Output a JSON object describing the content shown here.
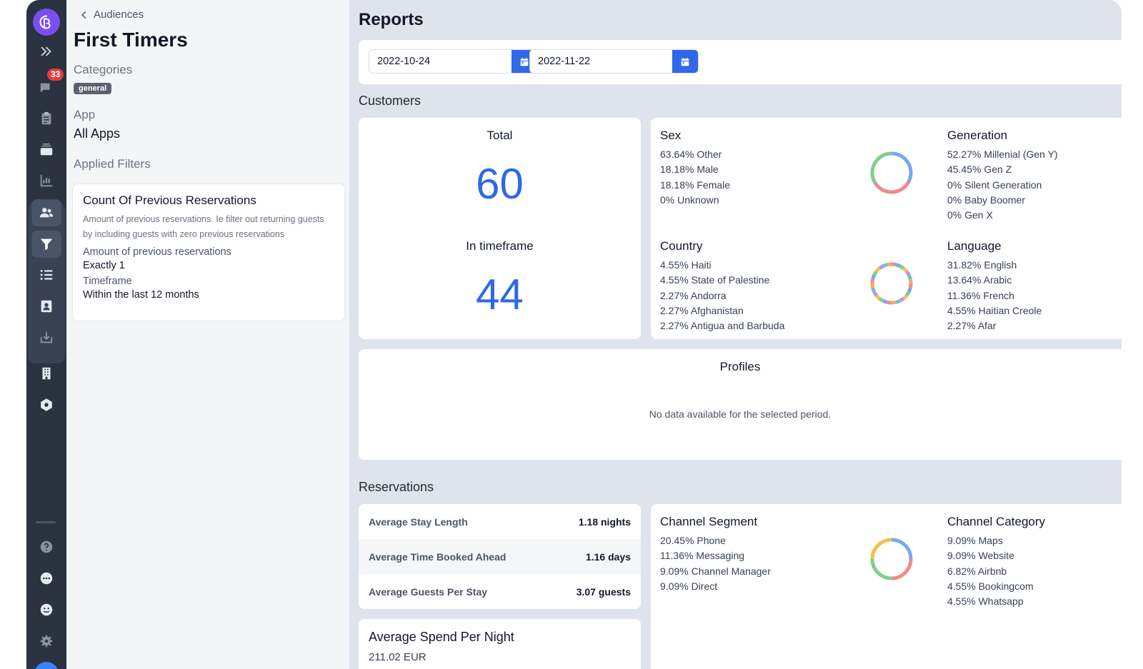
{
  "nav": {
    "conversations_badge": "33"
  },
  "audience": {
    "back_label": "Audiences",
    "title": "First Timers",
    "categories_label": "Categories",
    "category_tag": "general",
    "app_label": "App",
    "app_value": "All Apps",
    "filters_label": "Applied Filters",
    "filter": {
      "title": "Count Of Previous Reservations",
      "description": "Amount of previous reservations. Ie filter out returning guests by including guests with zero previous reservations",
      "row1_label": "Amount of previous reservations",
      "row1_value": "Exactly 1",
      "row2_label": "Timeframe",
      "row2_value": "Within the last 12 months"
    }
  },
  "reports": {
    "title": "Reports",
    "start_date": "2022-10-24",
    "end_date": "2022-11-22",
    "customers_label": "Customers",
    "total_label": "Total",
    "total_value": "60",
    "timeframe_label": "In timeframe",
    "timeframe_value": "44",
    "sex": {
      "title": "Sex",
      "items": [
        "63.64% Other",
        "18.18% Male",
        "18.18% Female",
        "0% Unknown"
      ]
    },
    "generation": {
      "title": "Generation",
      "items": [
        "52.27% Millenial (Gen Y)",
        "45.45% Gen Z",
        "0% Silent Generation",
        "0% Baby Boomer",
        "0% Gen X"
      ]
    },
    "country": {
      "title": "Country",
      "items": [
        "4.55% Haiti",
        "4.55% State of Palestine",
        "2.27% Andorra",
        "2.27% Afghanistan",
        "2.27% Antigua and Barbuda"
      ]
    },
    "language": {
      "title": "Language",
      "items": [
        "31.82% English",
        "13.64% Arabic",
        "11.36% French",
        "4.55% Haitian Creole",
        "2.27% Afar"
      ]
    },
    "profiles_title": "Profiles",
    "profiles_empty": "No data available for the selected period.",
    "reservations_label": "Reservations",
    "stats": [
      {
        "label": "Average Stay Length",
        "value": "1.18 nights"
      },
      {
        "label": "Average Time Booked Ahead",
        "value": "1.16 days"
      },
      {
        "label": "Average Guests Per Stay",
        "value": "3.07 guests"
      }
    ],
    "channel_segment": {
      "title": "Channel Segment",
      "items": [
        "20.45% Phone",
        "11.36% Messaging",
        "9.09% Channel Manager",
        "9.09% Direct"
      ]
    },
    "channel_category": {
      "title": "Channel Category",
      "items": [
        "9.09% Maps",
        "9.09% Website",
        "6.82% Airbnb",
        "4.55% Bookingcom",
        "4.55% Whatsapp"
      ]
    },
    "spend_title": "Average Spend Per Night",
    "spend_value": "211.02 EUR"
  },
  "colors": {
    "accent": "#2f68e8",
    "nav_bg": "#2b3240",
    "logo": "#7a4ff2",
    "badge": "#e53e3e"
  },
  "donut_colors": {
    "sex": [
      "#7aa7f0",
      "#ef8a8a",
      "#7fcf8b"
    ],
    "segment": [
      "#7aa7f0",
      "#ef8a8a",
      "#7fcf8b",
      "#f2c14e"
    ],
    "country": [
      "#ef8a8a",
      "#7aa7f0",
      "#7fcf8b",
      "#f2c14e",
      "#b794f4",
      "#63c5c9",
      "#f6ad55"
    ]
  }
}
